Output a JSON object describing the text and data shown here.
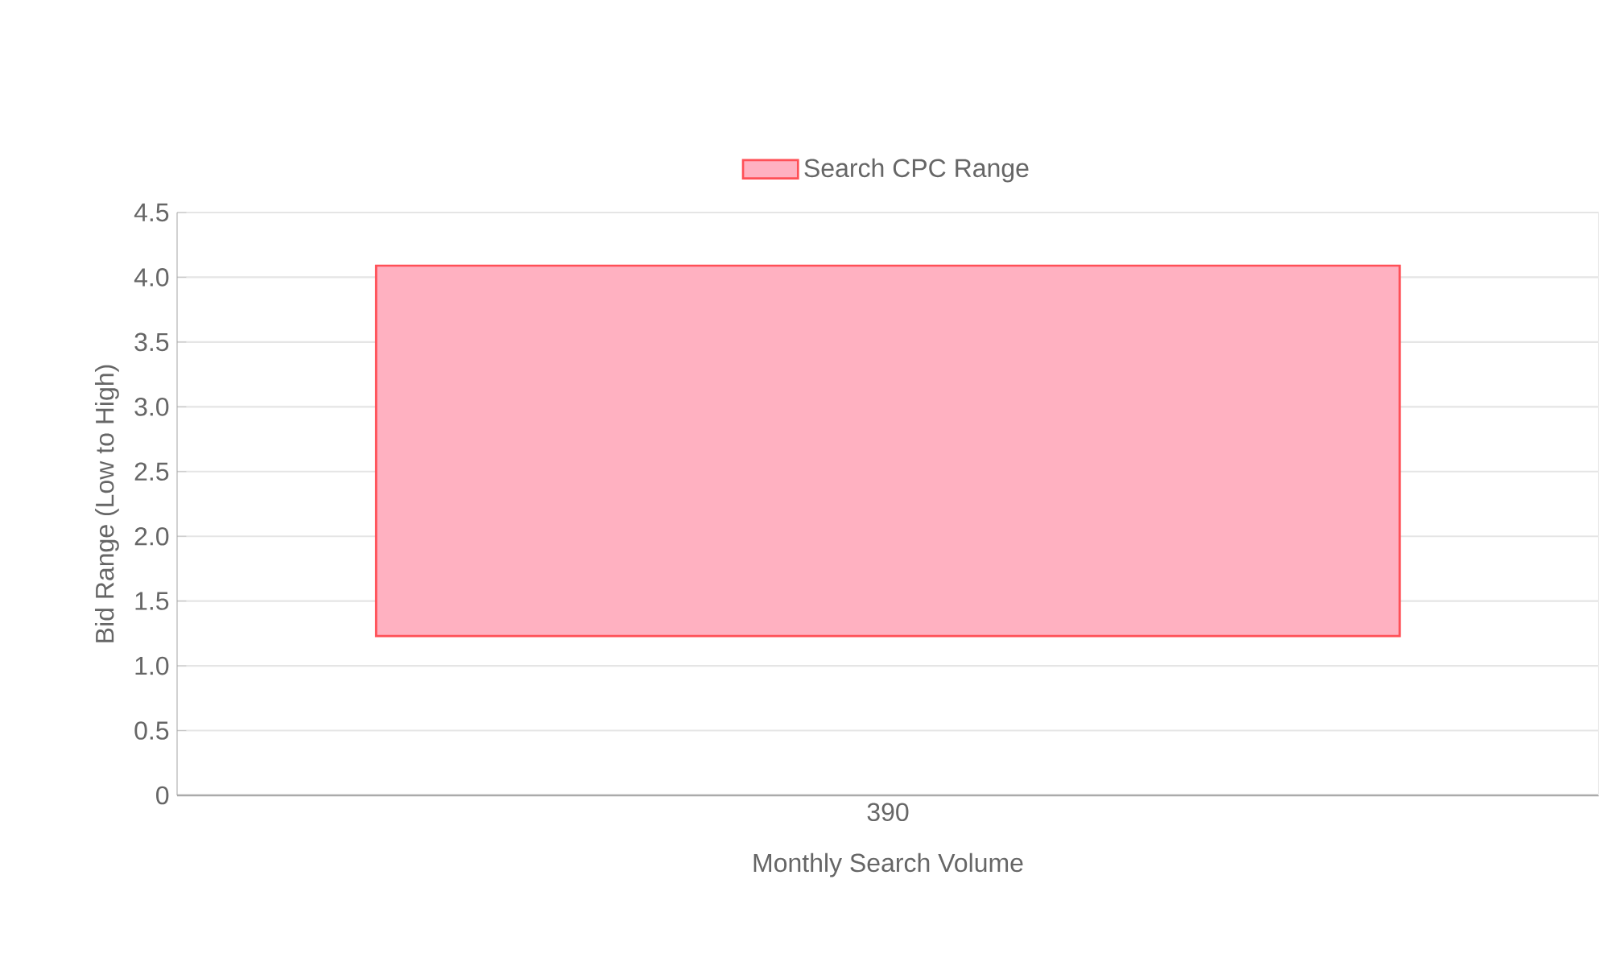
{
  "chart_data": {
    "type": "bar",
    "xlabel": "Monthly Search Volume",
    "ylabel": "Bid Range (Low to High)",
    "categories": [
      "390"
    ],
    "series": [
      {
        "name": "Search CPC Range",
        "color": "#ffb1c1",
        "values": [
          2.86
        ],
        "base": [
          1.23
        ]
      }
    ],
    "ylim": [
      0,
      4.5
    ],
    "yticks": [
      0,
      {
        "value": 0.5,
        "label": "0.5"
      },
      {
        "value": 1,
        "label": "1.0"
      },
      {
        "value": 1.5,
        "label": "1.5"
      },
      {
        "value": 2,
        "label": "2.0"
      },
      {
        "value": 2.5,
        "label": "2.5"
      },
      {
        "value": 3,
        "label": "3.0"
      },
      {
        "value": 3.5,
        "label": "3.5"
      },
      {
        "value": 4,
        "label": "4.0"
      },
      {
        "value": 4.5,
        "label": "4.5"
      }
    ],
    "grid": "y",
    "legend": "top"
  }
}
